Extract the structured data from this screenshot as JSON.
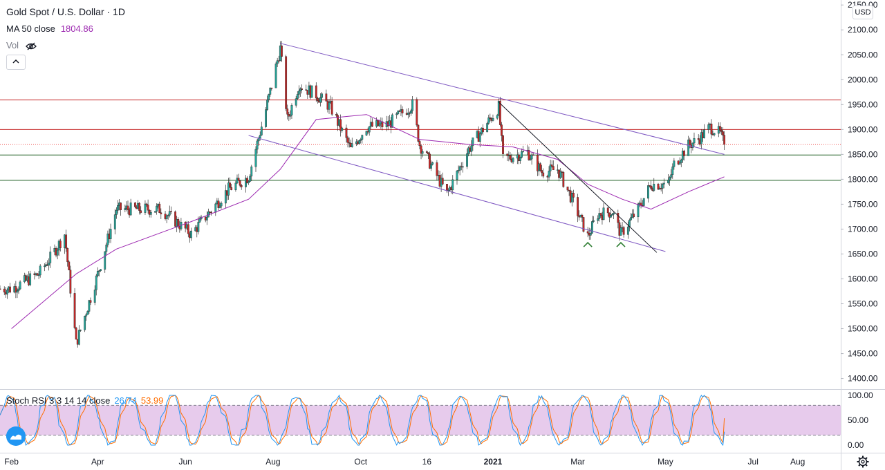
{
  "header": {
    "symbol": "Gold Spot / U.S. Dollar · 1D",
    "ma_label": "MA 50 close",
    "ma_value": "1804.86",
    "vol_label": "Vol",
    "currency": "USD"
  },
  "stoch": {
    "label": "Stoch RSI 3 3 14 14 close",
    "k_value": "26.74",
    "d_value": "53.99",
    "upper_band": 80,
    "lower_band": 20,
    "ticks": [
      "100.00",
      "50.00",
      "0.00"
    ]
  },
  "colors": {
    "up": "#26a69a",
    "down": "#ef5350",
    "ma": "#9c27b0",
    "channel": "#7e57c2",
    "resistance": "#c62828",
    "support": "#1b5e20",
    "stoch_k": "#2196f3",
    "stoch_d": "#ff6d00",
    "stoch_band": "#e1bee7"
  },
  "chart_data": {
    "type": "candlestick",
    "title": "Gold Spot / U.S. Dollar · 1D",
    "y_axis": {
      "ylim": [
        1380,
        2160
      ],
      "ticks": [
        "2150.00",
        "2100.00",
        "2050.00",
        "2000.00",
        "1950.00",
        "1900.00",
        "1850.00",
        "1800.00",
        "1750.00",
        "1700.00",
        "1650.00",
        "1600.00",
        "1550.00",
        "1500.00",
        "1450.00",
        "1400.00"
      ]
    },
    "x_axis": {
      "labels": [
        "Feb",
        "Apr",
        "Jun",
        "Aug",
        "Oct",
        "16",
        "2021",
        "Mar",
        "May",
        "Jul",
        "Aug"
      ],
      "bold_label": "2021"
    },
    "price_path": [
      [
        "2020-02-01",
        1580
      ],
      [
        "2020-02-20",
        1610
      ],
      [
        "2020-03-01",
        1650
      ],
      [
        "2020-03-09",
        1690
      ],
      [
        "2020-03-17",
        1470
      ],
      [
        "2020-03-31",
        1600
      ],
      [
        "2020-04-14",
        1740
      ],
      [
        "2020-05-15",
        1740
      ],
      [
        "2020-06-05",
        1690
      ],
      [
        "2020-07-01",
        1780
      ],
      [
        "2020-07-15",
        1805
      ],
      [
        "2020-07-27",
        1940
      ],
      [
        "2020-08-06",
        2063
      ],
      [
        "2020-08-11",
        1920
      ],
      [
        "2020-08-19",
        1990
      ],
      [
        "2020-08-31",
        1970
      ],
      [
        "2020-09-10",
        1945
      ],
      [
        "2020-09-24",
        1860
      ],
      [
        "2020-10-05",
        1905
      ],
      [
        "2020-10-20",
        1910
      ],
      [
        "2020-11-06",
        1950
      ],
      [
        "2020-11-11",
        1870
      ],
      [
        "2020-11-30",
        1770
      ],
      [
        "2020-12-15",
        1860
      ],
      [
        "2021-01-05",
        1945
      ],
      [
        "2021-01-08",
        1840
      ],
      [
        "2021-01-25",
        1855
      ],
      [
        "2021-02-04",
        1815
      ],
      [
        "2021-02-15",
        1820
      ],
      [
        "2021-02-25",
        1760
      ],
      [
        "2021-03-08",
        1685
      ],
      [
        "2021-03-15",
        1730
      ],
      [
        "2021-03-25",
        1735
      ],
      [
        "2021-03-31",
        1690
      ],
      [
        "2021-04-12",
        1740
      ],
      [
        "2021-04-21",
        1790
      ],
      [
        "2021-05-03",
        1790
      ],
      [
        "2021-05-07",
        1830
      ],
      [
        "2021-05-17",
        1868
      ],
      [
        "2021-05-24",
        1880
      ],
      [
        "2021-06-01",
        1905
      ],
      [
        "2021-06-08",
        1892
      ],
      [
        "2021-06-11",
        1870
      ]
    ],
    "ma50_path": [
      [
        "2020-02-01",
        1500
      ],
      [
        "2020-03-17",
        1610
      ],
      [
        "2020-04-14",
        1660
      ],
      [
        "2020-06-05",
        1715
      ],
      [
        "2020-07-15",
        1760
      ],
      [
        "2020-08-06",
        1820
      ],
      [
        "2020-08-31",
        1920
      ],
      [
        "2020-10-05",
        1930
      ],
      [
        "2020-11-11",
        1880
      ],
      [
        "2020-12-15",
        1870
      ],
      [
        "2021-01-15",
        1865
      ],
      [
        "2021-02-15",
        1840
      ],
      [
        "2021-03-08",
        1790
      ],
      [
        "2021-04-01",
        1760
      ],
      [
        "2021-04-21",
        1740
      ],
      [
        "2021-05-17",
        1775
      ],
      [
        "2021-06-11",
        1805
      ]
    ],
    "last_price": 1869.69,
    "ma50_value": 1804.86,
    "horizontal_levels": [
      {
        "label": "1959.34",
        "kind": "resistance"
      },
      {
        "label": "1900.00",
        "kind": "resistance"
      },
      {
        "label": "1848.78",
        "kind": "support"
      },
      {
        "label": "1797.95",
        "kind": "support"
      }
    ],
    "trendlines": [
      {
        "from": [
          "2020-08-06",
          2073
        ],
        "to": [
          "2021-06-11",
          1850
        ],
        "kind": "channel-upper"
      },
      {
        "from": [
          "2020-07-15",
          1888
        ],
        "to": [
          "2021-05-01",
          1655
        ],
        "kind": "channel-lower"
      },
      {
        "from": [
          "2021-01-05",
          1955
        ],
        "to": [
          "2021-04-25",
          1653
        ],
        "kind": "breakout"
      }
    ],
    "markers": [
      {
        "date": "2021-03-08",
        "price": 1670,
        "symbol": "^"
      },
      {
        "date": "2021-03-31",
        "price": 1670,
        "symbol": "^"
      }
    ],
    "stoch_k_last": 26.74,
    "stoch_d_last": 53.99
  }
}
